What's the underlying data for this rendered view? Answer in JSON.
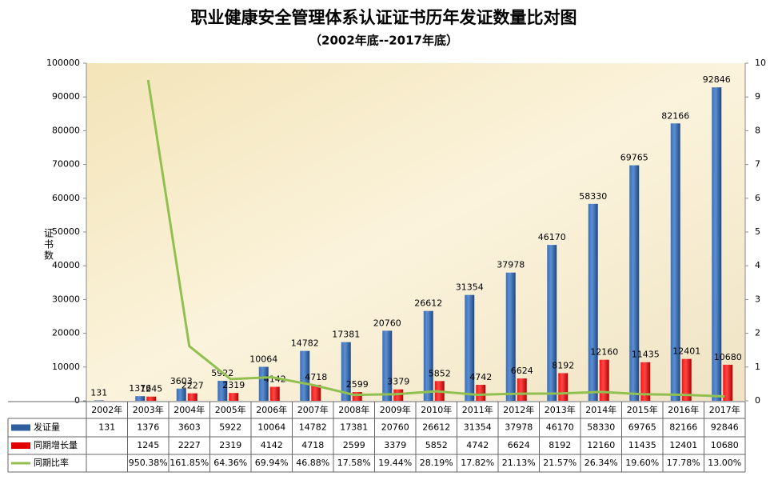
{
  "chart_data": {
    "type": "bar",
    "title": "职业健康安全管理体系认证证书历年发证数量比对图",
    "subtitle": "（2002年底--2017年底）",
    "y_label": "证书数",
    "categories": [
      "2002年",
      "2003年",
      "2004年",
      "2005年",
      "2006年",
      "2007年",
      "2008年",
      "2009年",
      "2010年",
      "2011年",
      "2012年",
      "2013年",
      "2014年",
      "2015年",
      "2016年",
      "2017年"
    ],
    "series": [
      {
        "name": "发证量",
        "type": "bar",
        "color": "#2f5f9f",
        "values": [
          131,
          1376,
          3603,
          5922,
          10064,
          14782,
          17381,
          20760,
          26612,
          31354,
          37978,
          46170,
          58330,
          69765,
          82166,
          92846
        ]
      },
      {
        "name": "同期增长量",
        "type": "bar",
        "color": "#e00000",
        "values": [
          null,
          1245,
          2227,
          2319,
          4142,
          4718,
          2599,
          3379,
          5852,
          4742,
          6624,
          8192,
          12160,
          11435,
          12401,
          10680
        ]
      },
      {
        "name": "同期比率",
        "type": "line",
        "axis": "y2",
        "color": "#92c050",
        "values": [
          null,
          9.5038,
          1.6185,
          0.6436,
          0.6994,
          0.4688,
          0.1758,
          0.1944,
          0.2819,
          0.1782,
          0.2113,
          0.2157,
          0.2634,
          0.196,
          0.1778,
          0.13
        ],
        "value_labels": [
          null,
          "950.38%",
          "161.85%",
          "64.36%",
          "69.94%",
          "46.88%",
          "17.58%",
          "19.44%",
          "28.19%",
          "17.82%",
          "21.13%",
          "21.57%",
          "26.34%",
          "19.60%",
          "17.78%",
          "13.00%"
        ]
      }
    ],
    "ylim": [
      0,
      100000
    ],
    "yticks": [
      0,
      10000,
      20000,
      30000,
      40000,
      50000,
      60000,
      70000,
      80000,
      90000,
      100000
    ],
    "y2lim": [
      0,
      10
    ],
    "y2ticks": [
      0,
      1,
      2,
      3,
      4,
      5,
      6,
      7,
      8,
      9,
      10
    ]
  }
}
